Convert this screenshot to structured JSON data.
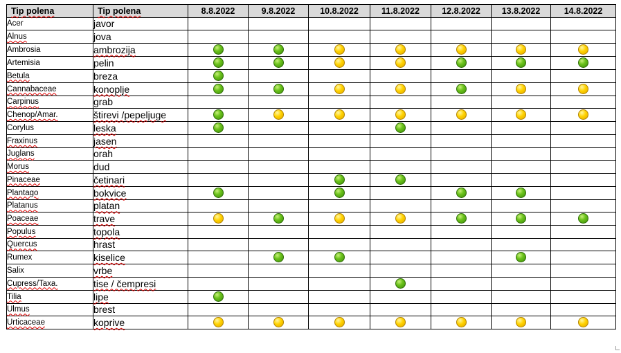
{
  "header": {
    "col_latin": "Tip polena",
    "col_local": "Tip polena",
    "dates": [
      "8.8.2022",
      "9.8.2022",
      "10.8.2022",
      "11.8.2022",
      "12.8.2022",
      "13.8.2022",
      "14.8.2022"
    ]
  },
  "legend_colors": {
    "green": "#6cc31c",
    "yellow": "#ffd200"
  },
  "rows": [
    {
      "latin": "Acer",
      "local": "javor",
      "levels": [
        "",
        "",
        "",
        "",
        "",
        "",
        ""
      ]
    },
    {
      "latin": "Alnus",
      "local": "jova",
      "levels": [
        "",
        "",
        "",
        "",
        "",
        "",
        ""
      ]
    },
    {
      "latin": "Ambrosia",
      "local": "ambrozija",
      "levels": [
        "green",
        "green",
        "yellow",
        "yellow",
        "yellow",
        "yellow",
        "yellow"
      ]
    },
    {
      "latin": "Artemisia",
      "local": "pelin",
      "levels": [
        "green",
        "green",
        "yellow",
        "yellow",
        "green",
        "green",
        "green"
      ]
    },
    {
      "latin": "Betula",
      "local": "breza",
      "levels": [
        "green",
        "",
        "",
        "",
        "",
        "",
        ""
      ]
    },
    {
      "latin": "Cannabaceae",
      "local": "konoplje",
      "levels": [
        "green",
        "green",
        "yellow",
        "yellow",
        "green",
        "yellow",
        "yellow"
      ]
    },
    {
      "latin": "Carpinus",
      "local": "grab",
      "levels": [
        "",
        "",
        "",
        "",
        "",
        "",
        ""
      ]
    },
    {
      "latin": "Chenop/Amar.",
      "local": "štirevi /pepeljuge",
      "levels": [
        "green",
        "yellow",
        "yellow",
        "yellow",
        "yellow",
        "yellow",
        "yellow"
      ]
    },
    {
      "latin": "Corylus",
      "local": "leska",
      "levels": [
        "green",
        "",
        "",
        "green",
        "",
        "",
        ""
      ]
    },
    {
      "latin": "Fraxinus",
      "local": "jasen",
      "levels": [
        "",
        "",
        "",
        "",
        "",
        "",
        ""
      ]
    },
    {
      "latin": "Juglans",
      "local": "orah",
      "levels": [
        "",
        "",
        "",
        "",
        "",
        "",
        ""
      ]
    },
    {
      "latin": "Morus",
      "local": "dud",
      "levels": [
        "",
        "",
        "",
        "",
        "",
        "",
        ""
      ]
    },
    {
      "latin": "Pinaceae",
      "local": "četinari",
      "levels": [
        "",
        "",
        "green",
        "green",
        "",
        "",
        ""
      ]
    },
    {
      "latin": "Plantago",
      "local": "bokvice",
      "levels": [
        "green",
        "",
        "green",
        "",
        "green",
        "green",
        ""
      ]
    },
    {
      "latin": "Platanus",
      "local": "platan",
      "levels": [
        "",
        "",
        "",
        "",
        "",
        "",
        ""
      ]
    },
    {
      "latin": "Poaceae",
      "local": "trave",
      "levels": [
        "yellow",
        "green",
        "yellow",
        "yellow",
        "green",
        "green",
        "green"
      ]
    },
    {
      "latin": "Populus",
      "local": "topola",
      "levels": [
        "",
        "",
        "",
        "",
        "",
        "",
        ""
      ]
    },
    {
      "latin": "Quercus",
      "local": "hrast",
      "levels": [
        "",
        "",
        "",
        "",
        "",
        "",
        ""
      ]
    },
    {
      "latin": "Rumex",
      "local": "kiselice",
      "levels": [
        "",
        "green",
        "green",
        "",
        "",
        "green",
        ""
      ]
    },
    {
      "latin": "Salix",
      "local": "vrbe",
      "levels": [
        "",
        "",
        "",
        "",
        "",
        "",
        ""
      ]
    },
    {
      "latin": "Cupress/Taxa.",
      "local": "tise / čempresi",
      "levels": [
        "",
        "",
        "",
        "green",
        "",
        "",
        ""
      ]
    },
    {
      "latin": "Tilia",
      "local": "lipe",
      "levels": [
        "green",
        "",
        "",
        "",
        "",
        "",
        ""
      ]
    },
    {
      "latin": "Ulmus",
      "local": "brest",
      "levels": [
        "",
        "",
        "",
        "",
        "",
        "",
        ""
      ]
    },
    {
      "latin": "Urticaceae",
      "local": "koprive",
      "levels": [
        "yellow",
        "yellow",
        "yellow",
        "yellow",
        "yellow",
        "yellow",
        "yellow"
      ]
    }
  ]
}
